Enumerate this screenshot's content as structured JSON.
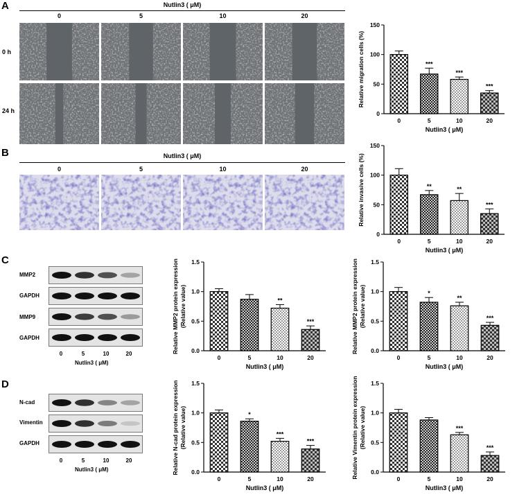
{
  "panels": {
    "A": {
      "letter": "A",
      "header": "Nutlin3 ( μM)",
      "columns": [
        "0",
        "5",
        "10",
        "20"
      ],
      "rows": [
        "0 h",
        "24 h"
      ]
    },
    "B": {
      "letter": "B",
      "header": "Nutlin3 ( μM)",
      "columns": [
        "0",
        "5",
        "10",
        "20"
      ]
    },
    "C": {
      "letter": "C",
      "blot_rows": [
        "MMP2",
        "GAPDH",
        "MMP9",
        "GAPDH"
      ],
      "lanes": [
        "0",
        "5",
        "10",
        "20"
      ],
      "xlabel": "Nutlin3 ( μM)"
    },
    "D": {
      "letter": "D",
      "blot_rows": [
        "N-cad",
        "Vimentin",
        "GAPDH"
      ],
      "lanes": [
        "0",
        "5",
        "10",
        "20"
      ],
      "xlabel": "Nutlin3 ( μM)"
    }
  },
  "colors": {
    "wound_bg": "#6f7377",
    "transwell_bg": "#dcdcec",
    "cell_stain": "#3a3591",
    "bar_fill_pattern": "checkerboard"
  },
  "chart_data": [
    {
      "id": "migration",
      "type": "bar",
      "categories": [
        "0",
        "5",
        "10",
        "20"
      ],
      "values": [
        100,
        67,
        58,
        35
      ],
      "errors": [
        6,
        10,
        4,
        4
      ],
      "significance": [
        "",
        "***",
        "***",
        "***"
      ],
      "xlabel": "Nutlin3 ( μM)",
      "ylabel": "Relative migration cells (%)",
      "ylim": [
        0,
        150
      ],
      "yticks": [
        "0",
        "50",
        "100",
        "150"
      ]
    },
    {
      "id": "invasion",
      "type": "bar",
      "categories": [
        "0",
        "5",
        "10",
        "20"
      ],
      "values": [
        100,
        67,
        57,
        35
      ],
      "errors": [
        11,
        7,
        12,
        8
      ],
      "significance": [
        "",
        "**",
        "**",
        "***"
      ],
      "xlabel": "Nutlin3 ( μM)",
      "ylabel": "Relative invasive cells (%)",
      "ylim": [
        0,
        150
      ],
      "yticks": [
        "0",
        "50",
        "100",
        "150"
      ]
    },
    {
      "id": "mmp2-a",
      "type": "bar",
      "categories": [
        "0",
        "5",
        "10",
        "20"
      ],
      "values": [
        1.0,
        0.87,
        0.72,
        0.36
      ],
      "errors": [
        0.05,
        0.08,
        0.06,
        0.06
      ],
      "significance": [
        "",
        "",
        "**",
        "***"
      ],
      "xlabel": "Nutlin3 ( μM)",
      "ylabel": "Relative MMP2 protein expression",
      "ylabel2": "(Relative value)",
      "ylim": [
        0,
        1.5
      ],
      "yticks": [
        "0.0",
        "0.5",
        "1.0",
        "1.5"
      ]
    },
    {
      "id": "mmp2-b",
      "type": "bar",
      "categories": [
        "0",
        "5",
        "10",
        "20"
      ],
      "values": [
        1.0,
        0.82,
        0.76,
        0.43
      ],
      "errors": [
        0.07,
        0.08,
        0.06,
        0.05
      ],
      "significance": [
        "",
        "*",
        "**",
        "***"
      ],
      "xlabel": "Nutlin3 ( μM)",
      "ylabel": "Relative MMP2 protein expression",
      "ylabel2": "(Relative value)",
      "ylim": [
        0,
        1.5
      ],
      "yticks": [
        "0.0",
        "0.5",
        "1.0",
        "1.5"
      ]
    },
    {
      "id": "ncad",
      "type": "bar",
      "categories": [
        "0",
        "5",
        "10",
        "20"
      ],
      "values": [
        1.0,
        0.86,
        0.52,
        0.39
      ],
      "errors": [
        0.05,
        0.04,
        0.05,
        0.06
      ],
      "significance": [
        "",
        "*",
        "***",
        "***"
      ],
      "xlabel": "Nutlin3 ( μM)",
      "ylabel": "Relative N-cad protein expression",
      "ylabel2": "(Relative value)",
      "ylim": [
        0,
        1.5
      ],
      "yticks": [
        "0.0",
        "0.5",
        "1.0",
        "1.5"
      ]
    },
    {
      "id": "vimentin",
      "type": "bar",
      "categories": [
        "0",
        "5",
        "10",
        "20"
      ],
      "values": [
        1.0,
        0.88,
        0.63,
        0.28
      ],
      "errors": [
        0.06,
        0.04,
        0.04,
        0.06
      ],
      "significance": [
        "",
        "",
        "***",
        "***"
      ],
      "xlabel": "Nutlin3 ( μM)",
      "ylabel": "Relative Vimentin protein expression",
      "ylabel2": "(Relative value)",
      "ylim": [
        0,
        1.5
      ],
      "yticks": [
        "0.0",
        "0.5",
        "1.0",
        "1.5"
      ]
    }
  ]
}
